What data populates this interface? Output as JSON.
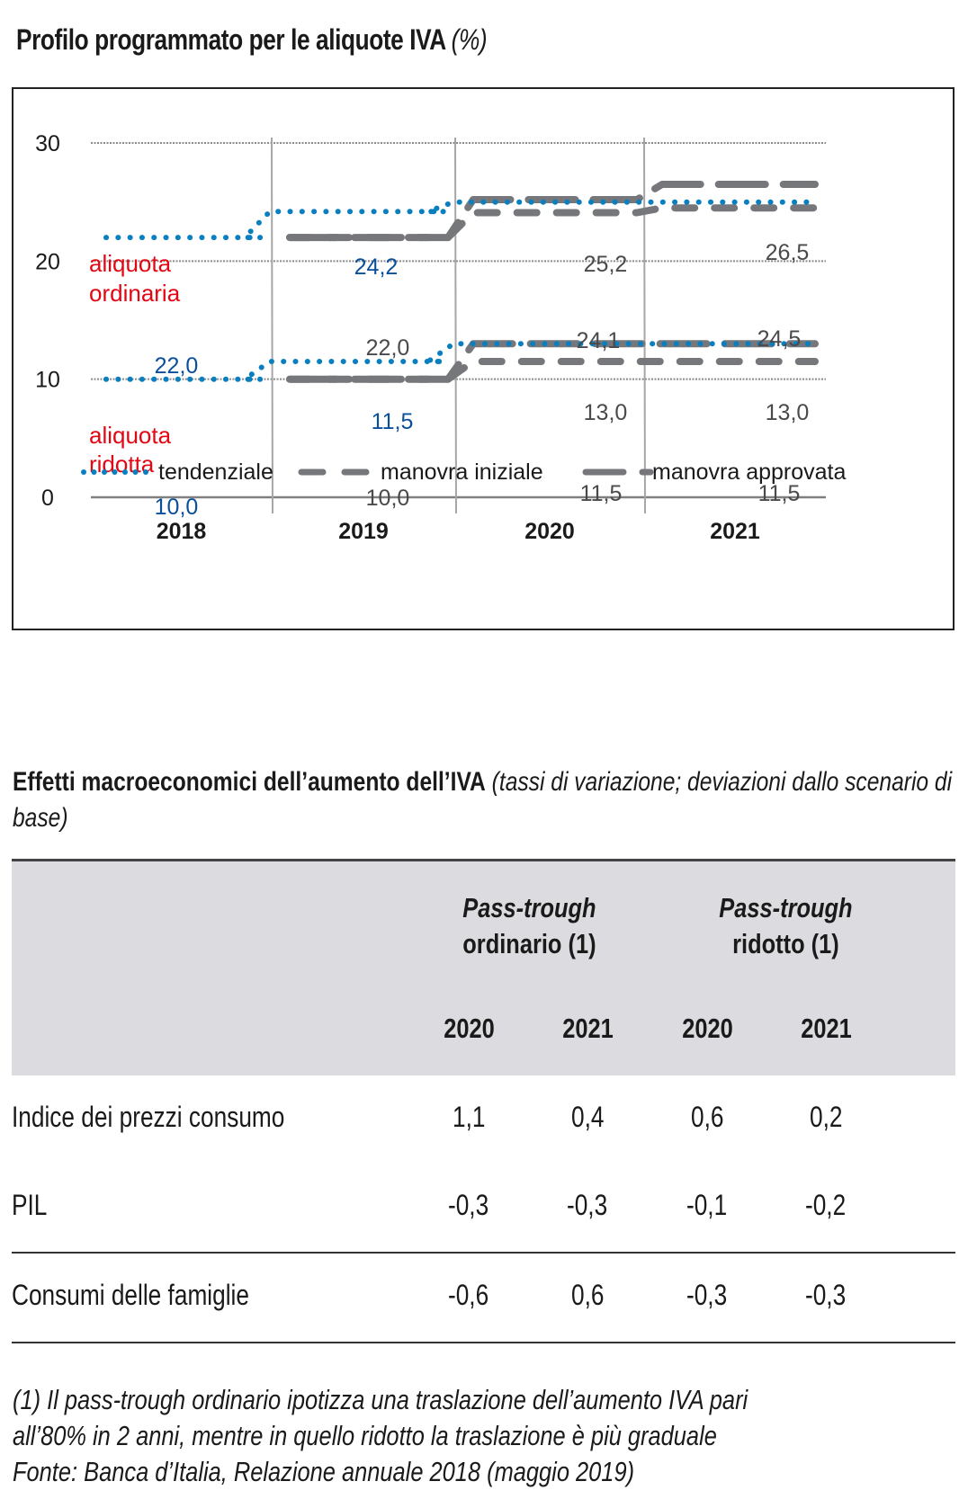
{
  "chart_title": {
    "main": "Profilo programmato per le aliquote IVA",
    "unit": "(%)"
  },
  "chart_data": {
    "type": "line",
    "title": "Profilo programmato per le aliquote IVA (%)",
    "xlabel": "",
    "ylabel": "",
    "categories": [
      "2018",
      "2019",
      "2020",
      "2021"
    ],
    "ylim": [
      0,
      30
    ],
    "yticks": [
      0,
      10,
      20,
      30
    ],
    "ytick_labels": [
      "0",
      "10",
      "20",
      "30"
    ],
    "grid": true,
    "legend_position": "bottom",
    "groups": [
      {
        "name": "aliquota ordinaria",
        "series": [
          {
            "name": "tendenziale",
            "style": "dotted",
            "color": "#0a7fc0",
            "values": [
              22.0,
              24.2,
              25.0,
              25.0
            ]
          },
          {
            "name": "manovra iniziale",
            "style": "dashed",
            "color": "#76777a",
            "values": [
              null,
              22.0,
              24.1,
              24.5
            ]
          },
          {
            "name": "manovra approvata",
            "style": "long-dashed",
            "color": "#76777a",
            "values": [
              null,
              22.0,
              25.2,
              26.5
            ]
          }
        ]
      },
      {
        "name": "aliquota ridotta",
        "series": [
          {
            "name": "tendenziale",
            "style": "dotted",
            "color": "#0a7fc0",
            "values": [
              10.0,
              11.5,
              13.0,
              13.0
            ]
          },
          {
            "name": "manovra iniziale",
            "style": "dashed",
            "color": "#76777a",
            "values": [
              null,
              10.0,
              11.5,
              11.5
            ]
          },
          {
            "name": "manovra approvata",
            "style": "long-dashed",
            "color": "#76777a",
            "values": [
              null,
              10.0,
              13.0,
              13.0
            ]
          }
        ]
      }
    ],
    "group_labels": [
      {
        "text": [
          "aliquota",
          "ordinaria"
        ],
        "color": "#e30613"
      },
      {
        "text": [
          "aliquota",
          "ridotta"
        ],
        "color": "#e30613"
      }
    ],
    "annotations": [
      {
        "text": "22,0",
        "year": "2018",
        "value": 22.0,
        "color": "#0a4f9a"
      },
      {
        "text": "24,2",
        "year": "2019",
        "value": 24.2,
        "color": "#0a4f9a"
      },
      {
        "text": "22,0",
        "year": "2019",
        "value": 22.0,
        "color": "#4a4a4d"
      },
      {
        "text": "25,2",
        "year": "2020",
        "value": 25.2,
        "color": "#4a4a4d"
      },
      {
        "text": "24,1",
        "year": "2020",
        "value": 24.1,
        "color": "#4a4a4d"
      },
      {
        "text": "26,5",
        "year": "2021",
        "value": 26.5,
        "color": "#4a4a4d"
      },
      {
        "text": "24,5",
        "year": "2021",
        "value": 24.5,
        "color": "#4a4a4d"
      },
      {
        "text": "10,0",
        "year": "2018",
        "value": 10.0,
        "color": "#0a4f9a"
      },
      {
        "text": "11,5",
        "year": "2019",
        "value": 11.5,
        "color": "#0a4f9a"
      },
      {
        "text": "10,0",
        "year": "2019",
        "value": 10.0,
        "color": "#4a4a4d"
      },
      {
        "text": "13,0",
        "year": "2020",
        "value": 13.0,
        "color": "#4a4a4d"
      },
      {
        "text": "11,5",
        "year": "2020",
        "value": 11.5,
        "color": "#4a4a4d"
      },
      {
        "text": "13,0",
        "year": "2021",
        "value": 13.0,
        "color": "#4a4a4d"
      },
      {
        "text": "11,5",
        "year": "2021",
        "value": 11.5,
        "color": "#4a4a4d"
      }
    ],
    "legend": [
      "tendenziale",
      "manovra iniziale",
      "manovra approvata"
    ]
  },
  "table": {
    "title_bold": "Effetti macroeconomici dell’aumento dell’IVA",
    "title_italic": "(tassi di variazione; deviazioni dallo scenario di base)",
    "groups": [
      {
        "italic": "Pass-trough",
        "label": "ordinario (1)"
      },
      {
        "italic": "Pass-trough",
        "label": "ridotto (1)"
      }
    ],
    "years": [
      "2020",
      "2021",
      "2020",
      "2021"
    ],
    "rows": [
      {
        "label": "Indice dei prezzi consumo",
        "values": [
          "1,1",
          "0,4",
          "0,6",
          "0,2"
        ]
      },
      {
        "label": "PIL",
        "values": [
          "-0,3",
          "-0,3",
          "-0,1",
          "-0,2"
        ]
      },
      {
        "label": "Consumi delle famiglie",
        "values": [
          "-0,6",
          "0,6",
          "-0,3",
          "-0,3"
        ]
      }
    ]
  },
  "notes": [
    "(1) Il pass-trough ordinario ipotizza una traslazione dell’aumento IVA pari",
    "all’80% in 2 anni, mentre in quello ridotto la traslazione è più graduale",
    "Fonte: Banca d’Italia, Relazione annuale 2018 (maggio 2019)"
  ]
}
